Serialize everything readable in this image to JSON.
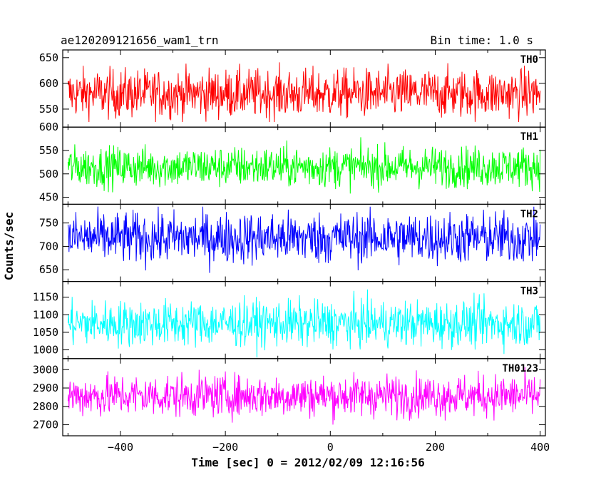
{
  "header": {
    "title": "ae120209121656_wam1_trn",
    "bin_time": "Bin time: 1.0 s"
  },
  "chart_data": {
    "type": "line",
    "xlabel": "Time [sec] 0 = 2012/02/09 12:16:56",
    "ylabel": "Counts/sec",
    "xlim": [
      -510,
      410
    ],
    "x_ticks": [
      -400,
      -200,
      0,
      200,
      400
    ],
    "x_tick_labels": [
      "−400",
      "−200",
      "0",
      "200",
      "400"
    ],
    "x_range": [
      -500,
      400
    ],
    "bin": 1.0,
    "panels": [
      {
        "name": "TH0",
        "color": "#ff0000",
        "ylim": [
          515,
          665
        ],
        "yticks": [
          550,
          600,
          650
        ],
        "mean": 580,
        "sigma": 24,
        "range": [
          525,
          660
        ]
      },
      {
        "name": "TH1",
        "color": "#00ff00",
        "ylim": [
          435,
          600
        ],
        "yticks": [
          450,
          500,
          550,
          600
        ],
        "mean": 515,
        "sigma": 22,
        "range": [
          440,
          590
        ]
      },
      {
        "name": "TH2",
        "color": "#0000ff",
        "ylim": [
          625,
          790
        ],
        "yticks": [
          650,
          700,
          750
        ],
        "mean": 718,
        "sigma": 28,
        "range": [
          628,
          785
        ]
      },
      {
        "name": "TH3",
        "color": "#00ffff",
        "ylim": [
          975,
          1195
        ],
        "yticks": [
          1000,
          1050,
          1100,
          1150
        ],
        "mean": 1075,
        "sigma": 33,
        "range": [
          978,
          1190
        ]
      },
      {
        "name": "TH0123",
        "color": "#ff00ff",
        "ylim": [
          2640,
          3060
        ],
        "yticks": [
          2700,
          2800,
          2900,
          3000
        ],
        "mean": 2858,
        "sigma": 58,
        "range": [
          2650,
          3040
        ]
      }
    ]
  }
}
